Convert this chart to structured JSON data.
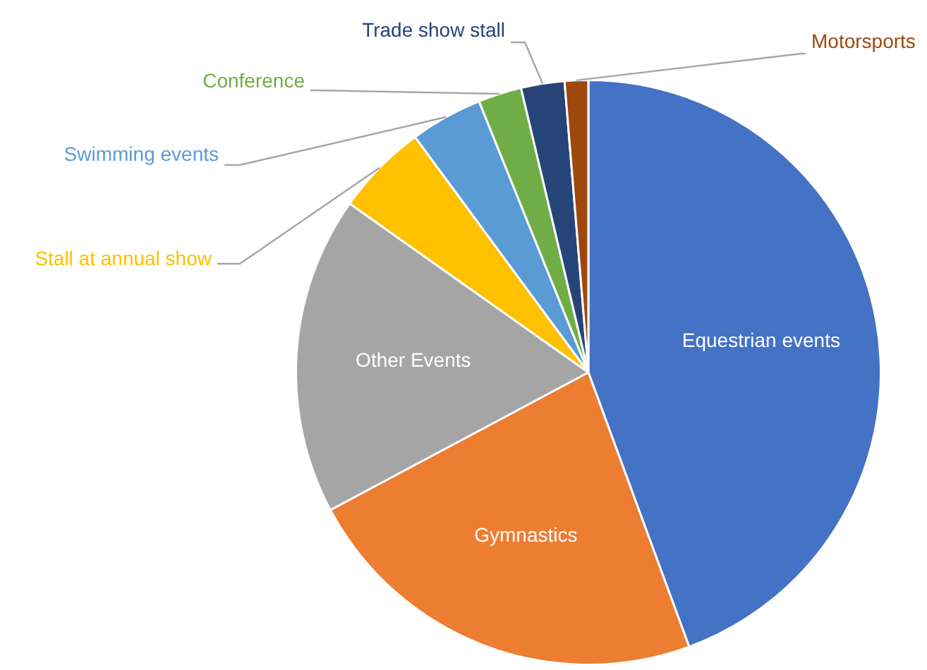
{
  "chart_data": {
    "type": "pie",
    "categories": [
      "Equestrian events",
      "Gymnastics",
      "Other Events",
      "Stall at annual show",
      "Swimming events",
      "Conference",
      "Trade show stall",
      "Motorsports"
    ],
    "values": [
      44.4,
      22.8,
      17.6,
      5.1,
      4.0,
      2.4,
      2.4,
      1.3
    ],
    "colors": [
      "#4472c4",
      "#ed7d31",
      "#a5a5a5",
      "#ffc000",
      "#5b9bd5",
      "#70ad47",
      "#264478",
      "#9e480e"
    ],
    "legend": false
  }
}
